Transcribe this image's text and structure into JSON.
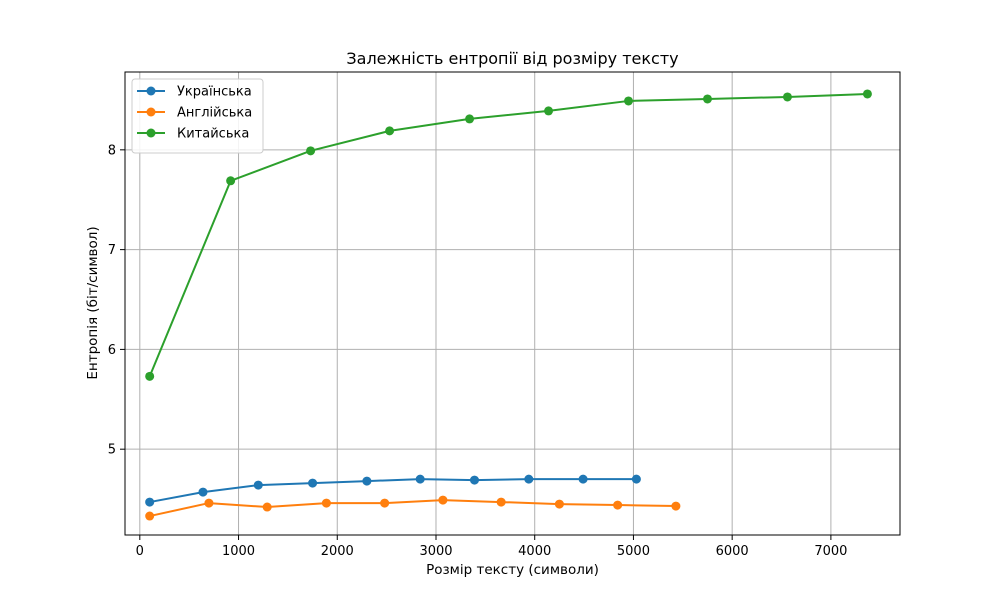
{
  "chart_data": {
    "type": "line",
    "title": "Залежність ентропії від розміру тексту",
    "xlabel": "Розмір тексту (символи)",
    "ylabel": "Ентропія (біт/символ)",
    "xlim": [
      -150,
      7700
    ],
    "ylim": [
      4.14,
      8.78
    ],
    "xticks": [
      0,
      1000,
      2000,
      3000,
      4000,
      5000,
      6000,
      7000
    ],
    "yticks": [
      5,
      6,
      7,
      8
    ],
    "grid": true,
    "legend_position": "top-left",
    "series": [
      {
        "name": "Українська",
        "color": "#1f77b4",
        "marker": "circle",
        "points": [
          [
            100,
            4.47
          ],
          [
            640,
            4.57
          ],
          [
            1200,
            4.64
          ],
          [
            1750,
            4.66
          ],
          [
            2300,
            4.68
          ],
          [
            2840,
            4.7
          ],
          [
            3390,
            4.69
          ],
          [
            3940,
            4.7
          ],
          [
            4490,
            4.7
          ],
          [
            5030,
            4.7
          ]
        ]
      },
      {
        "name": "Англійська",
        "color": "#ff7f0e",
        "marker": "circle",
        "points": [
          [
            100,
            4.33
          ],
          [
            700,
            4.46
          ],
          [
            1290,
            4.42
          ],
          [
            1890,
            4.46
          ],
          [
            2480,
            4.46
          ],
          [
            3070,
            4.49
          ],
          [
            3660,
            4.47
          ],
          [
            4250,
            4.45
          ],
          [
            4840,
            4.44
          ],
          [
            5430,
            4.43
          ]
        ]
      },
      {
        "name": "Китайська",
        "color": "#2ca02c",
        "marker": "circle",
        "points": [
          [
            100,
            5.73
          ],
          [
            920,
            7.69
          ],
          [
            1730,
            7.99
          ],
          [
            2530,
            8.19
          ],
          [
            3340,
            8.31
          ],
          [
            4140,
            8.39
          ],
          [
            4950,
            8.49
          ],
          [
            5750,
            8.51
          ],
          [
            6560,
            8.53
          ],
          [
            7370,
            8.56
          ]
        ]
      }
    ]
  }
}
